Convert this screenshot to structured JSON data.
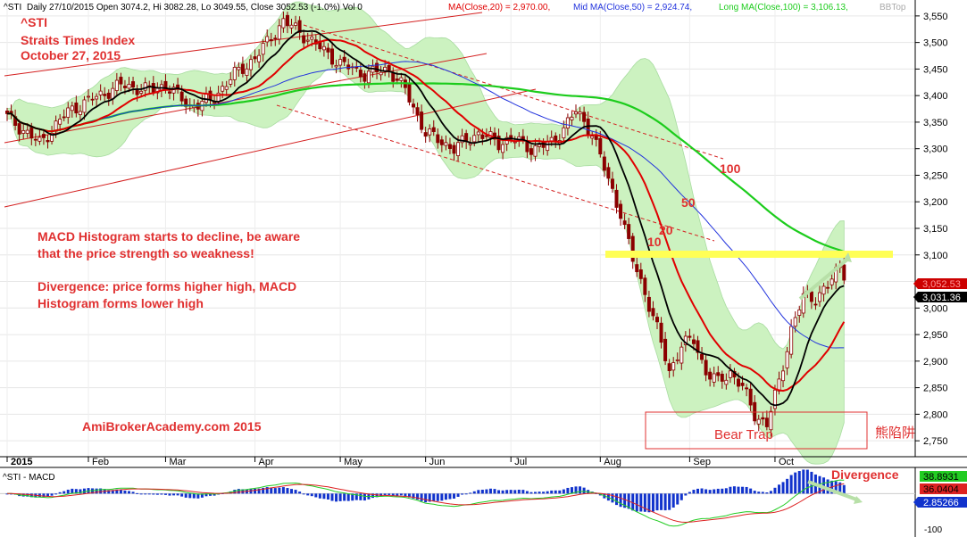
{
  "header": {
    "ticker": "^STI",
    "desc": "Daily 27/10/2015 Open 3074.2, Hi 3082.28, Lo 3049.55, Close 3052.53 (-1.0%) Vol 0",
    "ma20": "MA(Close,20) = 2,970.00,",
    "ma50": "Mid MA(Close,50) = 2,924.74,",
    "ma100": "Long MA(Close,100) = 3,106.13,",
    "bbt": "BBTop"
  },
  "overlay": {
    "ticker": "^STI",
    "name": "Straits Times Index",
    "date": "October 27, 2015",
    "note1_line1": "MACD Histogram starts to decline, be aware",
    "note1_line2": "that the price strength so weakness!",
    "note2_line1": "Divergence: price forms higher high, MACD",
    "note2_line2": "Histogram forms lower high",
    "site": "AmiBrokerAcademy.com 2015",
    "bear_trap": "Bear Trap",
    "chinese": "熊陷阱",
    "label_10": "10",
    "label_20": "20",
    "label_50": "50",
    "label_100": "100",
    "divergence": "Divergence"
  },
  "macd_panel": {
    "title": "^STI - MACD",
    "badge_a": "38.8931",
    "badge_b": "36.0404",
    "badge_c": "2.85266",
    "axis_labels": [
      "50",
      "-100"
    ]
  },
  "price_badges": {
    "close": "3,052.53",
    "ma": "3,031.36"
  },
  "colors": {
    "candle": "#8b0000",
    "ma_black": "#000000",
    "ma20": "#e00000",
    "ma50": "#2233dd",
    "ma100": "#1ccc1c",
    "band_fill": "#ccf2c0",
    "annotation": "#e03030",
    "yellow": "#ffff55",
    "macd_hist": "#1133cc"
  },
  "chart_data": {
    "type": "candlestick",
    "series_names": [
      "MA(Close,20)",
      "Mid MA(Close,50)",
      "Long MA(Close,100)",
      "BBTop"
    ],
    "y_ticks": [
      3550,
      3500,
      3450,
      3400,
      3350,
      3300,
      3250,
      3200,
      3150,
      3100,
      3050,
      3000,
      2950,
      2900,
      2850,
      2800,
      2750
    ],
    "y_tick_labels": [
      "3,550",
      "3,500",
      "3,450",
      "3,400",
      "3,350",
      "3,300",
      "3,250",
      "3,200",
      "3,150",
      "3,100",
      "3,050",
      "3,000",
      "2,950",
      "2,900",
      "2,850",
      "2,800",
      "2,750"
    ],
    "ylim": [
      2720,
      3580
    ],
    "x_month_labels": [
      "2015",
      "Feb",
      "Mar",
      "Apr",
      "May",
      "Jun",
      "Jul",
      "Aug",
      "Sep",
      "Oct"
    ],
    "x_month_start_index": [
      0,
      20,
      39,
      61,
      82,
      103,
      124,
      146,
      168,
      189
    ],
    "ohlc_anchor_closes": [
      [
        0,
        3360
      ],
      [
        8,
        3310
      ],
      [
        15,
        3370
      ],
      [
        20,
        3390
      ],
      [
        28,
        3420
      ],
      [
        35,
        3410
      ],
      [
        39,
        3420
      ],
      [
        45,
        3380
      ],
      [
        50,
        3390
      ],
      [
        56,
        3440
      ],
      [
        61,
        3470
      ],
      [
        68,
        3540
      ],
      [
        72,
        3520
      ],
      [
        77,
        3490
      ],
      [
        82,
        3460
      ],
      [
        88,
        3440
      ],
      [
        94,
        3450
      ],
      [
        98,
        3410
      ],
      [
        103,
        3330
      ],
      [
        110,
        3300
      ],
      [
        116,
        3330
      ],
      [
        121,
        3310
      ],
      [
        124,
        3320
      ],
      [
        129,
        3300
      ],
      [
        134,
        3310
      ],
      [
        140,
        3370
      ],
      [
        144,
        3330
      ],
      [
        148,
        3240
      ],
      [
        151,
        3180
      ],
      [
        154,
        3090
      ],
      [
        157,
        3030
      ],
      [
        160,
        2960
      ],
      [
        163,
        2880
      ],
      [
        166,
        2930
      ],
      [
        169,
        2940
      ],
      [
        172,
        2880
      ],
      [
        175,
        2860
      ],
      [
        178,
        2880
      ],
      [
        181,
        2850
      ],
      [
        184,
        2800
      ],
      [
        187,
        2780
      ],
      [
        190,
        2860
      ],
      [
        193,
        2960
      ],
      [
        196,
        3020
      ],
      [
        199,
        3020
      ],
      [
        202,
        3040
      ],
      [
        205,
        3080
      ],
      [
        206,
        3052
      ]
    ],
    "last": {
      "open": 3074.2,
      "high": 3082.28,
      "low": 3049.55,
      "close": 3052.53,
      "change_pct": -1.0
    },
    "ma20_last": 2970.0,
    "ma50_last": 2924.74,
    "ma100_last": 3106.13,
    "macd": {
      "ylim": [
        -120,
        60
      ],
      "ticks": [
        50,
        -100
      ],
      "values_last": [
        38.8931,
        36.0404,
        2.85266
      ]
    }
  }
}
